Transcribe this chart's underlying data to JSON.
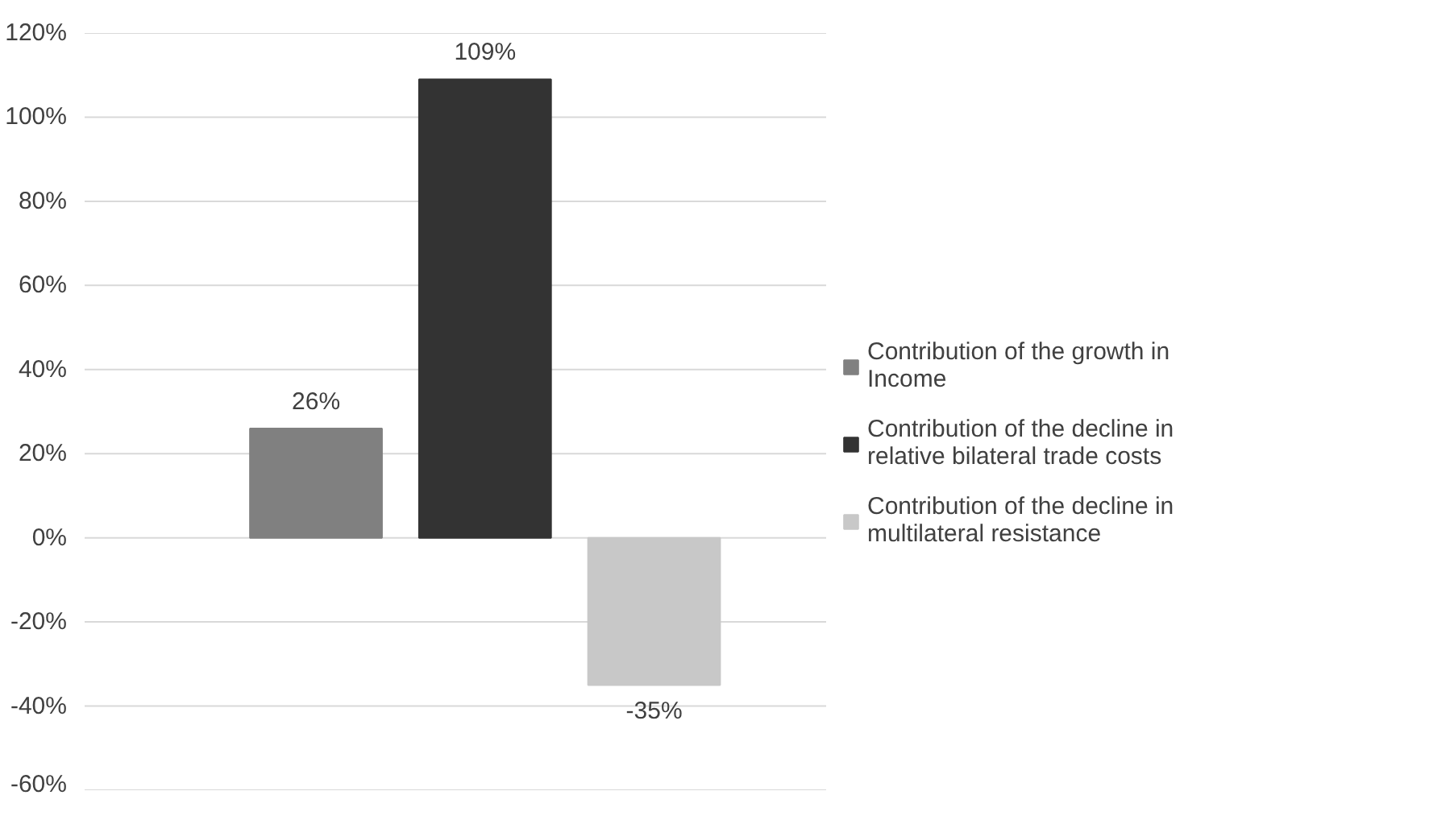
{
  "chart_data": {
    "type": "bar",
    "categories": [
      null
    ],
    "series": [
      {
        "name": "Contribution of the growth in Income",
        "color": "#808080",
        "values": [
          26
        ],
        "value_labels": [
          "26%"
        ]
      },
      {
        "name": "Contribution of the decline in relative bilateral trade costs",
        "color": "#333333",
        "values": [
          109
        ],
        "value_labels": [
          "109%"
        ]
      },
      {
        "name": "Contribution of the decline in multilateral resistance",
        "color": "#c8c8c8",
        "values": [
          -35
        ],
        "value_labels": [
          "-35%"
        ]
      }
    ],
    "ylim": [
      -60,
      120
    ],
    "yticks": [
      {
        "value": -60,
        "label": "-60%"
      },
      {
        "value": -40,
        "label": "-40%"
      },
      {
        "value": -20,
        "label": "-20%"
      },
      {
        "value": 0,
        "label": "0%"
      },
      {
        "value": 20,
        "label": "20%"
      },
      {
        "value": 40,
        "label": "40%"
      },
      {
        "value": 60,
        "label": "60%"
      },
      {
        "value": 80,
        "label": "80%"
      },
      {
        "value": 100,
        "label": "100%"
      },
      {
        "value": 120,
        "label": "120%"
      }
    ],
    "grid": "y",
    "legend": "right"
  }
}
